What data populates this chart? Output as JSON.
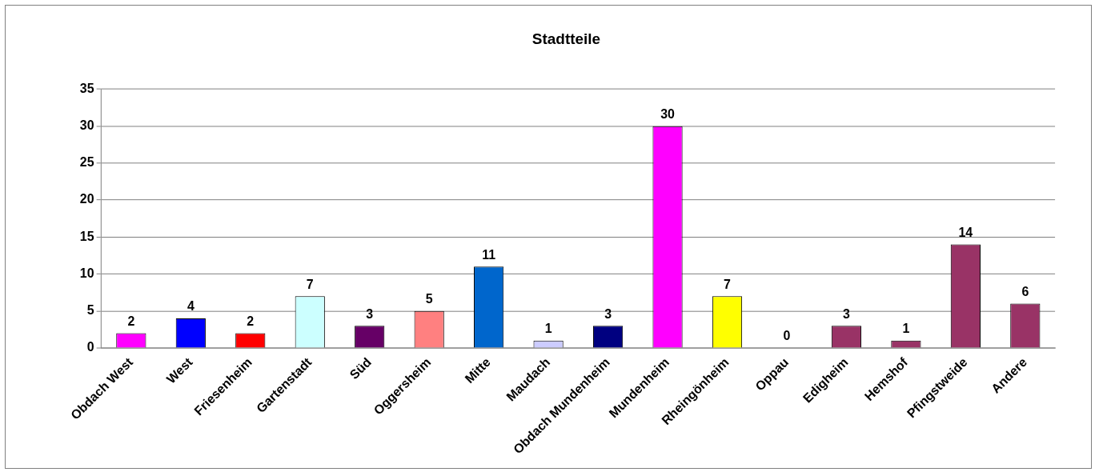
{
  "chart_data": {
    "type": "bar",
    "title": "Stadtteile",
    "categories": [
      "Obdach West",
      "West",
      "Friesenheim",
      "Gartenstadt",
      "Süd",
      "Oggersheim",
      "Mitte",
      "Maudach",
      "Obdach Mundenheim",
      "Mundenheim",
      "Rheingönheim",
      "Oppau",
      "Edigheim",
      "Hemshof",
      "Pfingstweide",
      "Andere"
    ],
    "values": [
      2,
      4,
      2,
      7,
      3,
      5,
      11,
      1,
      3,
      30,
      7,
      0,
      3,
      1,
      14,
      6
    ],
    "colors": [
      "#ff00ff",
      "#0000ff",
      "#ff0000",
      "#ccffff",
      "#660066",
      "#ff8080",
      "#0066cc",
      "#ccccff",
      "#000080",
      "#ff00ff",
      "#ffff00",
      "#00ffff",
      "#993366",
      "#993366",
      "#993366",
      "#993366"
    ],
    "ylim": [
      0,
      35
    ],
    "yticks": [
      0,
      5,
      10,
      15,
      20,
      25,
      30,
      35
    ],
    "grid": "y",
    "data_labels": true
  }
}
